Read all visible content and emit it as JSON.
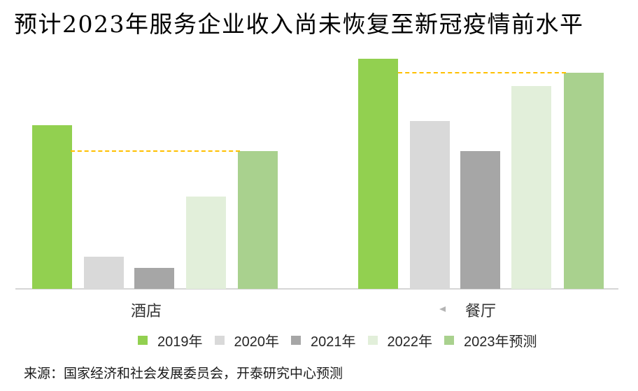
{
  "title": "预计2023年服务企业收入尚未恢复至新冠疫情前水平",
  "source": "来源：国家经济和社会发展委员会，开泰研究中心预测",
  "colors": {
    "reference_line": "#FFC000",
    "axis_line": "#d6d6d6",
    "title_text": "#000000",
    "label_text": "#333333"
  },
  "chart_data": {
    "type": "bar",
    "title": "预计2023年服务企业收入尚未恢复至新冠疫情前水平",
    "xlabel": "",
    "ylabel": "",
    "categories": [
      "酒店",
      "餐厅"
    ],
    "series": [
      {
        "name": "2019年",
        "color": "#92D050",
        "values": [
          71,
          100
        ]
      },
      {
        "name": "2020年",
        "color": "#D9D9D9",
        "values": [
          14,
          73
        ]
      },
      {
        "name": "2021年",
        "color": "#A6A6A6",
        "values": [
          9,
          60
        ]
      },
      {
        "name": "2022年",
        "color": "#E2EFDA",
        "values": [
          40,
          88
        ]
      },
      {
        "name": "2023年预测",
        "color": "#A9D18E",
        "values": [
          60,
          94
        ]
      }
    ],
    "value_scale_note": "no y-axis shown; values are relative bar heights estimated with 餐厅 2019 = 100",
    "reference_lines": [
      {
        "category": "酒店",
        "value": 60,
        "color": "#FFC000",
        "style": "dashed"
      },
      {
        "category": "餐厅",
        "value": 94,
        "color": "#FFC000",
        "style": "dashed"
      }
    ],
    "ylim": [
      0,
      105
    ],
    "grid": false,
    "y_axis_visible": false,
    "legend_position": "bottom"
  }
}
